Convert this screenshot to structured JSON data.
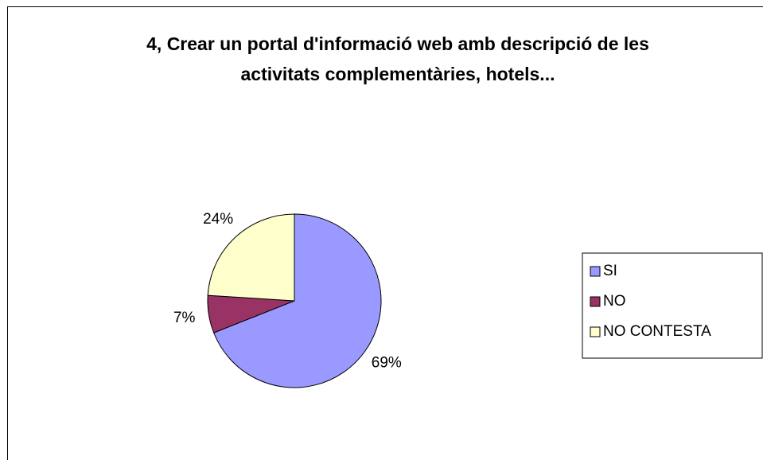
{
  "chart_data": {
    "type": "pie",
    "title": "4, Crear un portal d'informació web amb descripció de les activitats complementàries, hotels...",
    "categories": [
      "SI",
      "NO",
      "NO CONTESTA"
    ],
    "values": [
      69,
      7,
      24
    ],
    "value_labels": [
      "69%",
      "7%",
      "24%"
    ],
    "colors": [
      "#9999ff",
      "#993366",
      "#ffffcc"
    ],
    "legend": "right"
  }
}
